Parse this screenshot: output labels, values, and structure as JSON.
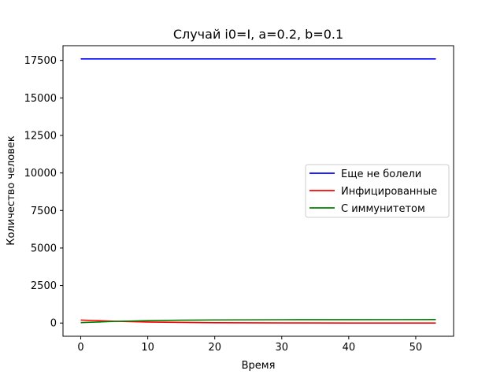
{
  "chart_data": {
    "type": "line",
    "title": "Случай i0=I, a=0.2, b=0.1",
    "xlabel": "Время",
    "ylabel": "Количество человек",
    "xlim": [
      -2.65,
      55.65
    ],
    "ylim": [
      -880,
      18480
    ],
    "xticks": [
      0,
      10,
      20,
      30,
      40,
      50
    ],
    "yticks": [
      0,
      2500,
      5000,
      7500,
      10000,
      12500,
      15000,
      17500
    ],
    "grid": false,
    "legend_position": "center-right",
    "series": [
      {
        "name": "Еще не болели",
        "color": "#0000ff",
        "x": [
          0,
          5,
          10,
          20,
          30,
          40,
          53
        ],
        "y": [
          17600,
          17600,
          17600,
          17600,
          17600,
          17600,
          17600
        ]
      },
      {
        "name": "Инфицированные",
        "color": "#ff0000",
        "x": [
          0,
          2,
          5,
          10,
          15,
          20,
          30,
          40,
          53
        ],
        "y": [
          200,
          170,
          120,
          70,
          40,
          22,
          8,
          3,
          1
        ]
      },
      {
        "name": "С иммунитетом",
        "color": "#008000",
        "x": [
          0,
          2,
          5,
          10,
          15,
          20,
          30,
          40,
          53
        ],
        "y": [
          30,
          60,
          110,
          160,
          190,
          208,
          222,
          227,
          229
        ]
      }
    ]
  }
}
